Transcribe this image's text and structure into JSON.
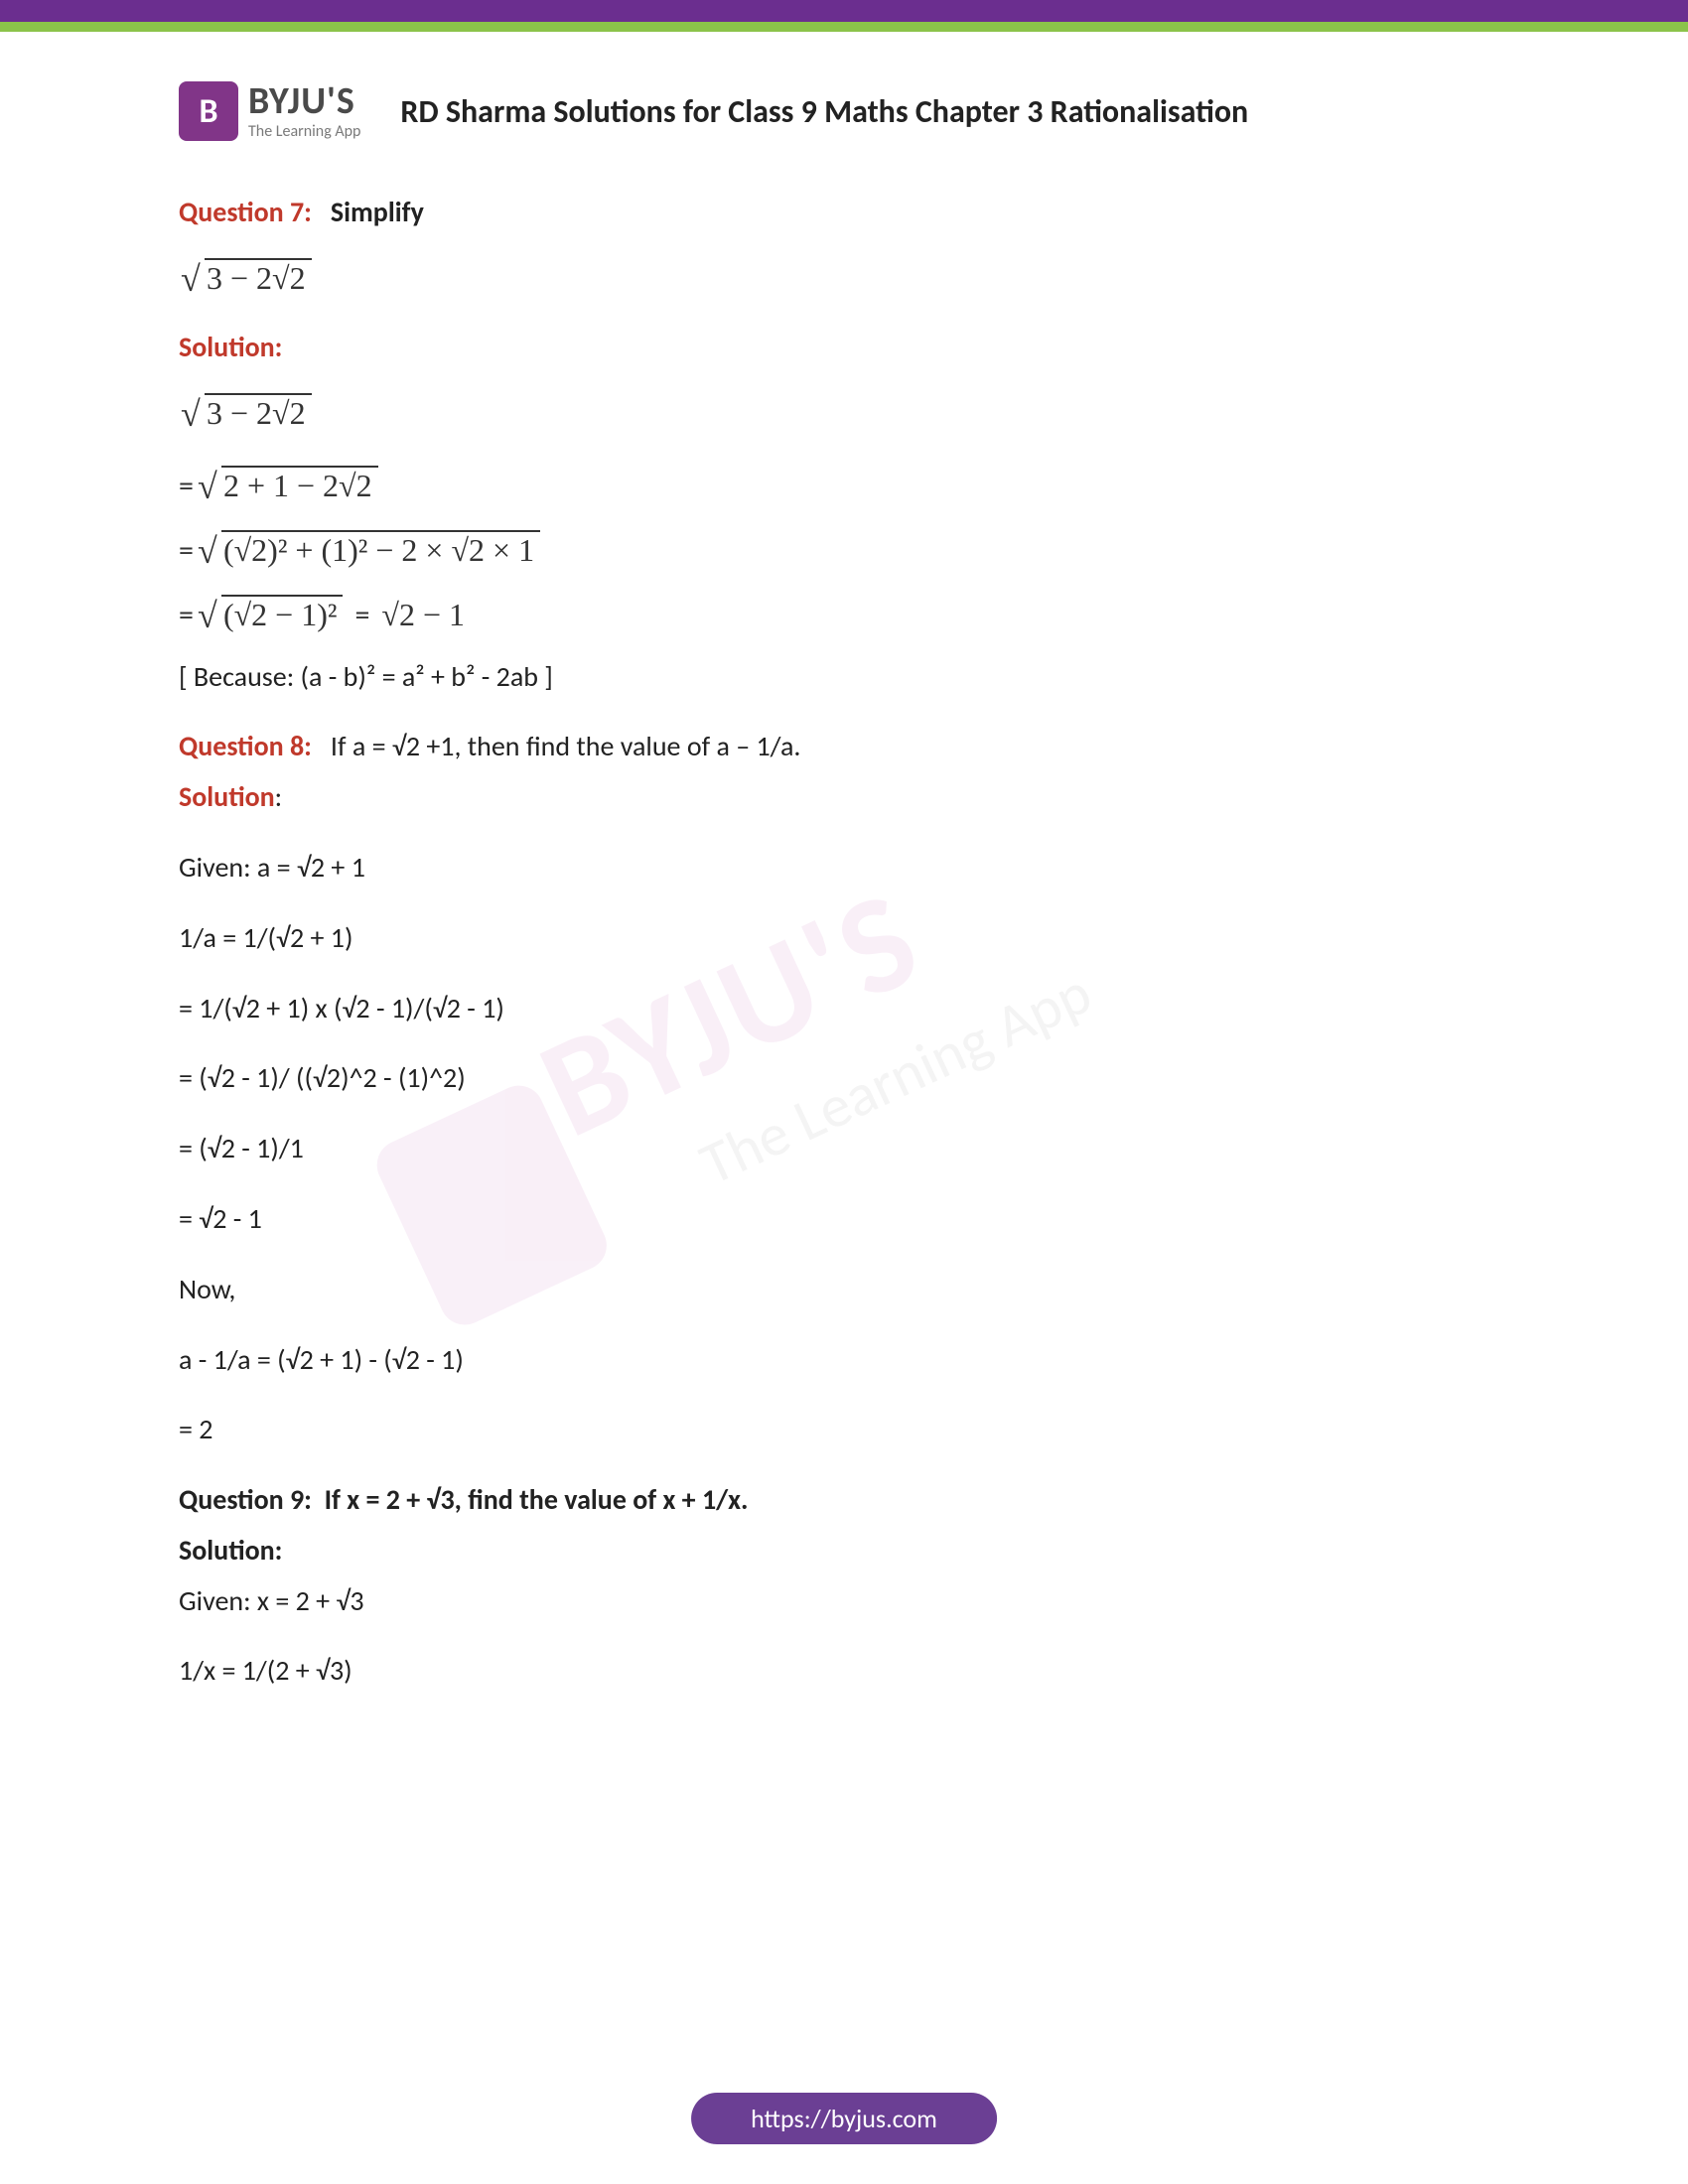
{
  "brand": {
    "icon_letter": "B",
    "name": "BYJU'S",
    "tagline": "The Learning App",
    "brand_color": "#813588",
    "text_color": "#4a4a4a"
  },
  "doc_title": "RD Sharma Solutions for Class 9 Maths Chapter 3 Rationalisation",
  "q7": {
    "label": "Question 7:",
    "prompt": "Simplify",
    "expr": "3 − 2√2",
    "solution_label": "Solution:",
    "step1": "2 + 1 − 2√2",
    "step2": "(√2)² + (1)² − 2 × √2 × 1",
    "step3_left": "(√2 − 1)²",
    "step3_right": "√2 − 1",
    "note": "[ Because: (a - b)² = a² + b² - 2ab ]"
  },
  "q8": {
    "label": "Question 8:",
    "prompt": "If a = √2 +1,  then find the value of a – 1/a.",
    "solution_label": "Solution",
    "lines": [
      "Given: a = √2 + 1",
      "1/a = 1/(√2 + 1)",
      "= 1/(√2 + 1) x (√2 - 1)/(√2 - 1)",
      "= (√2 - 1)/ ((√2)^2 - (1)^2)",
      "= (√2 - 1)/1",
      "= √2 - 1",
      "Now,",
      "a - 1/a = (√2 + 1) - (√2 - 1)",
      "= 2"
    ]
  },
  "q9": {
    "label": "Question 9:",
    "prompt": "If x = 2 + √3, find the value of x + 1/x.",
    "solution_label": "Solution:",
    "lines": [
      "Given: x = 2 + √3",
      "1/x = 1/(2 + √3)"
    ]
  },
  "footer_url": "https://byjus.com",
  "colors": {
    "top_purple": "#6b2e8f",
    "top_green": "#8bc34a",
    "question_red": "#c0392b",
    "footer_bg": "#6b3f94"
  }
}
